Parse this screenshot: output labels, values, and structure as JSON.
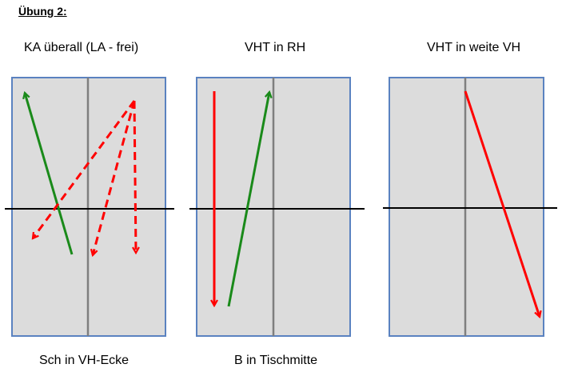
{
  "heading": "Übung 2:",
  "panels": [
    {
      "title": "KA überall (LA - frei)",
      "caption": "Sch in VH-Ecke"
    },
    {
      "title": "VHT in RH",
      "caption": "B in Tischmitte"
    },
    {
      "title": "VHT in weite VH",
      "caption": ""
    }
  ],
  "colors": {
    "table_fill": "#dcdcdc",
    "table_border": "#5a82c0",
    "center_line": "#7f7f7f",
    "net": "#000000",
    "green_arrow": "#1a8a1a",
    "red_arrow": "#ff0000"
  }
}
